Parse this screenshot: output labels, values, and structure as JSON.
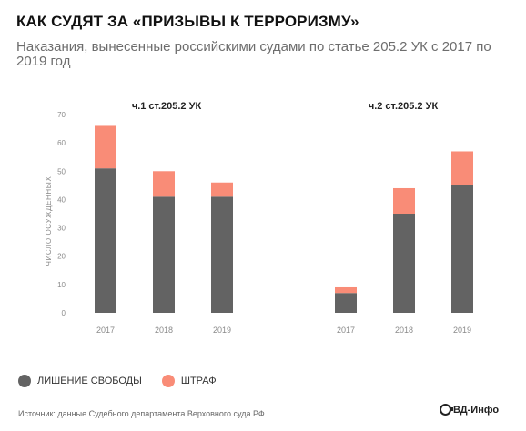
{
  "header": {
    "title": "КАК СУДЯТ ЗА «ПРИЗЫВЫ К ТЕРРОРИЗМУ»",
    "subtitle": "Наказания, вынесенные российскими судами по статье 205.2 УК с 2017 по 2019 год"
  },
  "colors": {
    "imprisonment": "#636363",
    "fine": "#f98c77",
    "axis_text": "#8a8a8a"
  },
  "chart_data": [
    {
      "type": "bar",
      "stacked": true,
      "title": "ч.1 ст.205.2 УК",
      "ylabel": "ЧИСЛО ОСУЖДЕННЫХ",
      "ylim": [
        0,
        70
      ],
      "yticks": [
        0,
        10,
        20,
        30,
        40,
        50,
        60,
        70
      ],
      "categories": [
        "2017",
        "2018",
        "2019"
      ],
      "series": [
        {
          "name": "ЛИШЕНИЕ СВОБОДЫ",
          "values": [
            51,
            41,
            41
          ]
        },
        {
          "name": "ШТРАФ",
          "values": [
            15,
            9,
            5
          ]
        }
      ]
    },
    {
      "type": "bar",
      "stacked": true,
      "title": "ч.2 ст.205.2 УК",
      "ylim": [
        0,
        70
      ],
      "categories": [
        "2017",
        "2018",
        "2019"
      ],
      "series": [
        {
          "name": "ЛИШЕНИЕ СВОБОДЫ",
          "values": [
            7,
            35,
            45
          ]
        },
        {
          "name": "ШТРАФ",
          "values": [
            2,
            9,
            12
          ]
        }
      ]
    }
  ],
  "legend": [
    {
      "label": "ЛИШЕНИЕ СВОБОДЫ",
      "color": "#636363"
    },
    {
      "label": "ШТРАФ",
      "color": "#f98c77"
    }
  ],
  "footer": {
    "source": "Источник: данные Судебного департамента Верховного суда РФ",
    "logo_text": "ВД-Инфо"
  }
}
